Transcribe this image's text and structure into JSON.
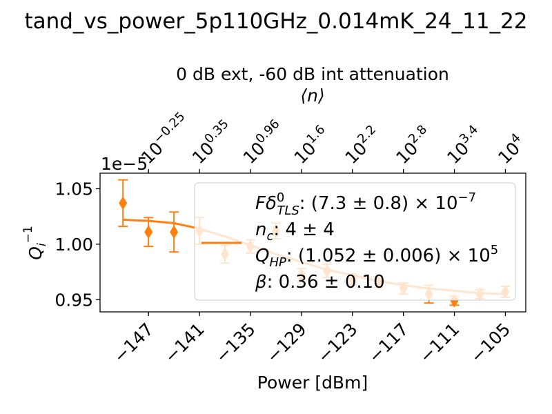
{
  "figure_title": "tand_vs_power_5p110GHz_0.014mK_24_11_22",
  "chart_data": {
    "type": "scatter",
    "title": "0 dB ext, -60 dB int attenuation",
    "xlabel": "Power [dBm]",
    "ylabel_main": "Q",
    "ylabel_sub": "i",
    "ylabel_sup": "−1",
    "y_offset_text": "1e−5",
    "top_axis_label": "⟨n⟩",
    "xlim": [
      -152.7,
      -102.6
    ],
    "ylim": [
      0.939,
      1.064
    ],
    "grid": false,
    "x_ticks": [
      -147,
      -141,
      -135,
      -129,
      -123,
      -117,
      -111,
      -105
    ],
    "x_tick_labels": [
      "−147",
      "−141",
      "−135",
      "−129",
      "−123",
      "−117",
      "−111",
      "−105"
    ],
    "y_ticks": [
      0.95,
      1.0,
      1.05
    ],
    "y_tick_labels": [
      "0.95",
      "1.00",
      "1.05"
    ],
    "top_ticks": [
      {
        "x": -147,
        "base": "10",
        "exp": "−0.25"
      },
      {
        "x": -141,
        "base": "10",
        "exp": "0.35"
      },
      {
        "x": -135,
        "base": "10",
        "exp": "0.96"
      },
      {
        "x": -129,
        "base": "10",
        "exp": "1.6"
      },
      {
        "x": -123,
        "base": "10",
        "exp": "2.2"
      },
      {
        "x": -117,
        "base": "10",
        "exp": "2.8"
      },
      {
        "x": -111,
        "base": "10",
        "exp": "3.4"
      },
      {
        "x": -105,
        "base": "10",
        "exp": "4"
      }
    ],
    "series": [
      {
        "kind": "data",
        "color": "#ff7f0e",
        "x": [
          -150,
          -147,
          -144,
          -141,
          -138,
          -135,
          -132,
          -129,
          -126,
          -123,
          -120,
          -117,
          -114,
          -111,
          -108,
          -105
        ],
        "y": [
          1.037,
          1.011,
          1.011,
          1.012,
          0.991,
          0.998,
          1.012,
          0.972,
          0.976,
          0.968,
          0.966,
          0.96,
          0.955,
          0.949,
          0.955,
          0.957
        ],
        "yerr": [
          0.021,
          0.013,
          0.018,
          0.012,
          0.008,
          0.006,
          0.007,
          0.006,
          0.006,
          0.005,
          0.005,
          0.005,
          0.008,
          0.004,
          0.004,
          0.005
        ]
      },
      {
        "kind": "fit",
        "color": "#ff7f0e",
        "x": [
          -150,
          -147,
          -144,
          -141,
          -138,
          -135,
          -132,
          -129,
          -126,
          -123,
          -120,
          -117,
          -114,
          -111,
          -108,
          -105
        ],
        "y": [
          1.022,
          1.021,
          1.019,
          1.014,
          1.007,
          0.999,
          0.991,
          0.984,
          0.977,
          0.972,
          0.967,
          0.963,
          0.96,
          0.958,
          0.956,
          0.955
        ]
      }
    ],
    "legend": {
      "placement": "right",
      "lines": [
        {
          "lhs": "Fδ",
          "lhs_sup": "0",
          "lhs_sub": "TLS",
          "rhs": ": (7.3 ± 0.8) × 10",
          "rhs_sup": "−7"
        },
        {
          "lhs": "n",
          "lhs_sup": "",
          "lhs_sub": "c",
          "rhs": ": 4 ± 4",
          "rhs_sup": ""
        },
        {
          "lhs": "Q",
          "lhs_sup": "",
          "lhs_sub": "HP",
          "rhs": ": (1.052 ± 0.006) × 10",
          "rhs_sup": "5"
        },
        {
          "lhs": "β",
          "lhs_sup": "",
          "lhs_sub": "",
          "rhs": ": 0.36 ± 0.10",
          "rhs_sup": ""
        }
      ]
    }
  }
}
